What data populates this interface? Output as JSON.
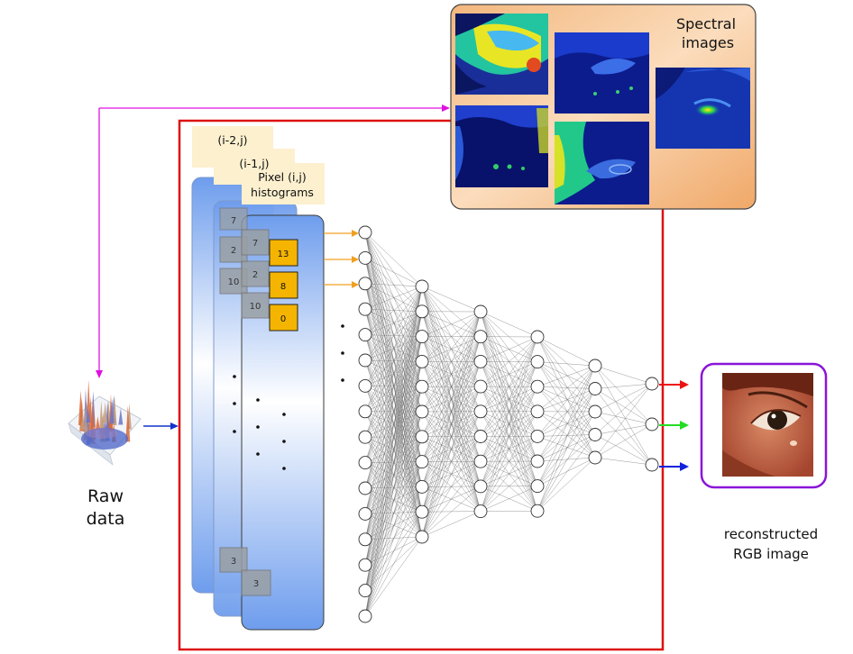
{
  "spectral": {
    "label_line1": "Spectral",
    "label_line2": "images"
  },
  "raw": {
    "label_line1": "Raw",
    "label_line2": "data"
  },
  "output": {
    "label_line1": "reconstructed",
    "label_line2": "RGB image"
  },
  "histograms": {
    "label_i2": "(i-2,j)",
    "label_i1": "(i-1,j)",
    "label_pixel": "Pixel (i,j)",
    "label_hist": "histograms",
    "front_bins": [
      "13",
      "8",
      "0"
    ],
    "middle_bins": [
      "7",
      "2",
      "10"
    ],
    "back_bins": [
      "7",
      "2",
      "10"
    ],
    "middle_last": "3",
    "back_last": "3"
  },
  "network": {
    "layers": [
      16,
      11,
      9,
      8,
      5,
      3
    ]
  },
  "colors": {
    "frame": "#dd1111",
    "magenta": "#e010e0",
    "orange": "#f0a020",
    "bin_fill": "#f5b400",
    "output_border": "#8a14d8",
    "out_red": "#ee1111",
    "out_green": "#22dd22",
    "out_blue": "#1122dd"
  }
}
